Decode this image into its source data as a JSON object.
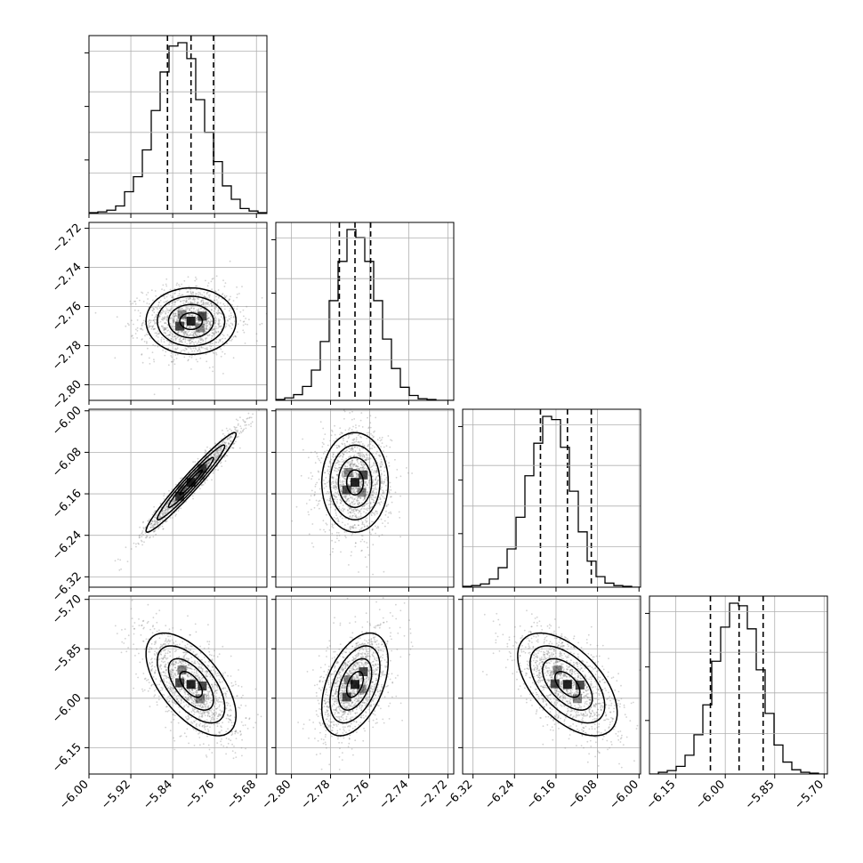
{
  "colors": {
    "background": "#ffffff",
    "axes": "#000000",
    "grid": "#b0b0b0",
    "scatter": "#7f7f7f",
    "histogram": "#000000"
  },
  "chart_data": {
    "type": "corner",
    "grid": true,
    "xlabel": "",
    "ylabel": "",
    "params": [
      {
        "range": [
          -6.0,
          -5.66
        ],
        "ticks": [
          -6.0,
          -5.92,
          -5.84,
          -5.76,
          -5.68
        ],
        "tick_labels": [
          "−6.00",
          "−5.92",
          "−5.84",
          "−5.76",
          "−5.68"
        ],
        "mean": -5.805,
        "quantiles": [
          -5.85,
          -5.805,
          -5.762
        ],
        "sd": 0.043
      },
      {
        "range": [
          -2.808,
          -2.717
        ],
        "ticks": [
          -2.8,
          -2.78,
          -2.76,
          -2.74,
          -2.72
        ],
        "tick_labels": [
          "−2.80",
          "−2.78",
          "−2.76",
          "−2.74",
          "−2.72"
        ],
        "mean": -2.7675,
        "quantiles": [
          -2.7755,
          -2.7675,
          -2.7595
        ],
        "sd": 0.0085
      },
      {
        "range": [
          -6.34,
          -5.997
        ],
        "ticks": [
          -6.32,
          -6.24,
          -6.16,
          -6.08,
          -6.0
        ],
        "tick_labels": [
          "−6.32",
          "−6.24",
          "−6.16",
          "−6.08",
          "−6.00"
        ],
        "mean": -6.138,
        "quantiles": [
          -6.19,
          -6.138,
          -6.092
        ],
        "sd": 0.048
      },
      {
        "range": [
          -6.23,
          -5.69
        ],
        "ticks": [
          -6.15,
          -6.0,
          -5.85,
          -5.7
        ],
        "tick_labels": [
          "−6.15",
          "−6.00",
          "−5.85",
          "−5.70"
        ],
        "mean": -5.958,
        "quantiles": [
          -6.045,
          -5.958,
          -5.885
        ],
        "sd": 0.078
      }
    ],
    "histograms": [
      {
        "param": 0,
        "counts": [
          1,
          2,
          4,
          9,
          26,
          44,
          76,
          123,
          169,
          200,
          204,
          185,
          136,
          97,
          62,
          33,
          17,
          6,
          3,
          1
        ]
      },
      {
        "param": 1,
        "counts": [
          1,
          3,
          7,
          17,
          37,
          72,
          122,
          170,
          209,
          199,
          170,
          122,
          75,
          39,
          16,
          6,
          2,
          1,
          0,
          0
        ]
      },
      {
        "param": 2,
        "counts": [
          1,
          2,
          4,
          10,
          24,
          47,
          86,
          137,
          177,
          210,
          206,
          172,
          118,
          68,
          32,
          13,
          5,
          2,
          1,
          0
        ]
      },
      {
        "param": 3,
        "counts": [
          0,
          2,
          4,
          9,
          22,
          46,
          81,
          132,
          172,
          200,
          197,
          170,
          122,
          71,
          34,
          14,
          5,
          2,
          1,
          0
        ]
      }
    ],
    "correlations": [
      {
        "x": 0,
        "y": 1,
        "rho": 0.0
      },
      {
        "x": 0,
        "y": 2,
        "rho": 0.97
      },
      {
        "x": 1,
        "y": 2,
        "rho": 0.0
      },
      {
        "x": 0,
        "y": 3,
        "rho": -0.6
      },
      {
        "x": 1,
        "y": 3,
        "rho": 0.45
      },
      {
        "x": 2,
        "y": 3,
        "rho": -0.55
      }
    ],
    "contour_levels": [
      "0.5σ",
      "1σ",
      "1.5σ",
      "2σ"
    ]
  }
}
